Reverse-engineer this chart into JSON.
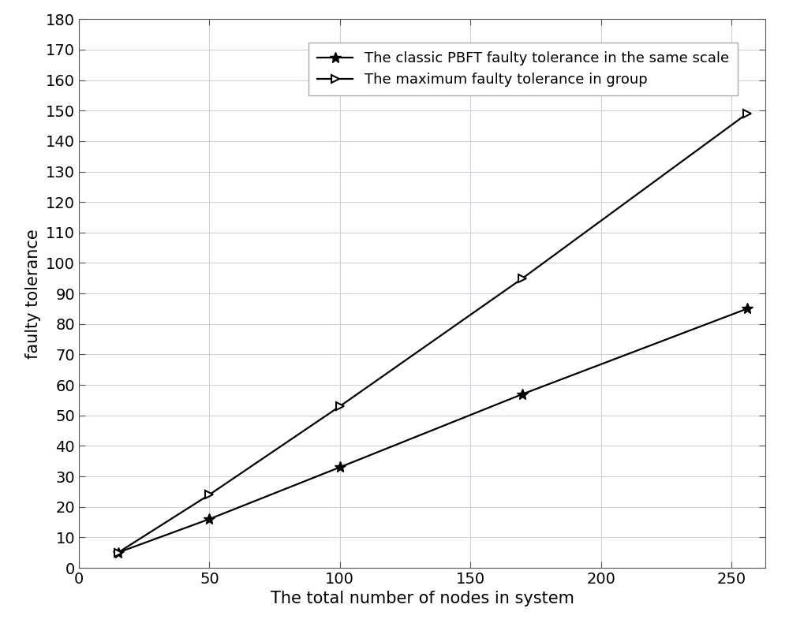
{
  "x": [
    15,
    50,
    100,
    170,
    256
  ],
  "pbft_y": [
    5,
    16,
    33,
    57,
    85
  ],
  "max_y": [
    5,
    24,
    53,
    95,
    149
  ],
  "xlabel": "The total number of nodes in system",
  "ylabel": "faulty tolerance",
  "xlim": [
    0,
    263
  ],
  "ylim": [
    0,
    180
  ],
  "xticks": [
    0,
    50,
    100,
    150,
    200,
    250
  ],
  "yticks": [
    0,
    10,
    20,
    30,
    40,
    50,
    60,
    70,
    80,
    90,
    100,
    110,
    120,
    130,
    140,
    150,
    160,
    170,
    180
  ],
  "legend_pbft": "The classic PBFT faulty tolerance in the same scale",
  "legend_max": "The maximum faulty tolerance in group",
  "line_color": "#000000",
  "background_color": "#ffffff",
  "grid_color": "#d0d0d8",
  "xlabel_fontsize": 15,
  "ylabel_fontsize": 15,
  "tick_fontsize": 14,
  "legend_fontsize": 13,
  "linewidth": 1.6,
  "marker_size": 7
}
